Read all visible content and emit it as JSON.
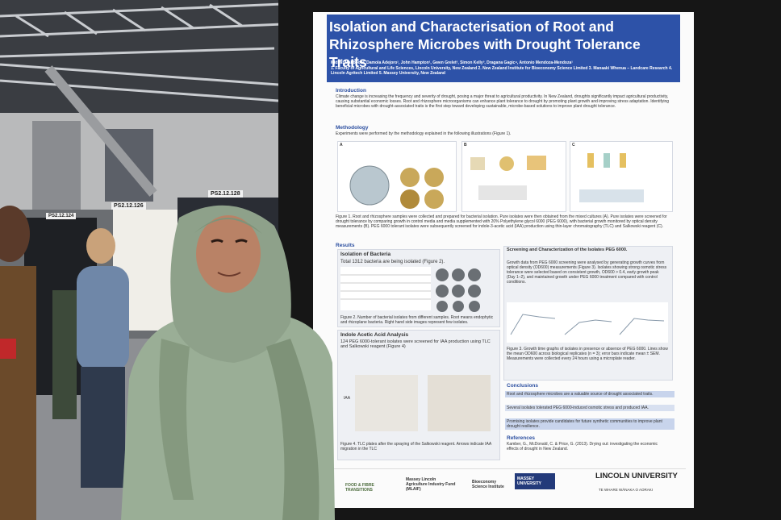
{
  "booth_signs": [
    "PS2.12.128",
    "PS2.12.126",
    "PS2.12.124"
  ],
  "poster": {
    "title": "Isolation and Characterisation of Root and Rhizosphere Microbes with Drought Tolerance Traits",
    "authors": "Midhat Mahboob¹, Damola Adejoro¹, John Hampton¹, Gwen Grelet², Simon Kelly³, Dragana Gagic⁴, Antonio Mendoza-Mendoza¹",
    "affiliations": "1. Faculty of Agricultural and Life Sciences, Lincoln University, New Zealand 2. New Zealand Institute for Bioeconomy Science Limited 3. Manaaki Whenua – Landcare Research 4. Lincoln Agritech Limited 5. Massey University, New Zealand",
    "introduction": {
      "heading": "Introduction",
      "text": "Climate change is increasing the frequency and severity of drought, posing a major threat to agricultural productivity. In New Zealand, droughts significantly impact agricultural productivity, causing substantial economic losses. Root and rhizosphere microorganisms can enhance plant tolerance to drought by promoting plant growth and improving stress adaptation. Identifying beneficial microbes with drought-associated traits is the first step toward developing sustainable, microbe-based solutions to improve plant drought tolerance."
    },
    "methodology": {
      "heading": "Methodology",
      "text": "Experiments were performed by the methodology explained in the following illustrations (Figure 1).",
      "panels": [
        "A",
        "B",
        "C"
      ],
      "caption": "Figure 1. Root and rhizosphere samples were collected and prepared for bacterial isolation. Pure isolates were then obtained from the mixed cultures (A). Pure isolates were screened for drought tolerance by comparing growth in control media and media supplemented with 20% Polyethylene glycol 6000 (PEG 6000), with bacterial growth monitored by optical density measurements (B). PEG 6000 tolerant isolates were subsequently screened for indole-3-acetic acid (IAA) production using thin-layer chromatography (TLC) and Salkowski reagent (C)."
    },
    "results": {
      "heading": "Results",
      "isolation": {
        "heading": "Isolation of Bacteria",
        "text": "Total 1312 bacteria are being isolated (Figure 2).",
        "caption": "Figure 2. Number of bacterial isolates from different samples. Root means endophytic and rhizoplane bacteria. Right hand side images represent few isolates."
      },
      "iaa": {
        "heading": "Indole Acetic Acid Analysis",
        "text": "124 PEG 6000-tolerant isolates were screened for IAA production using TLC and Salkowski reagent (Figure 4)",
        "marker": "IAA",
        "caption": "Figure 4. TLC plates after the spraying of the Salkowski reagent. Arrows indicate IAA migration in the TLC"
      },
      "screening": {
        "heading": "Screening and Characterization of the Isolates PEG 6000.",
        "text": "Growth data from PEG 6000 screening were analysed by generating growth curves from optical density (OD600) measurements (Figure 3). Isolates showing strong osmotic stress tolerance were selected based on consistent growth, OD600 > 0.4, early growth peak (Day 1–2), and maintained growth under PEG 6000 treatment compared with control conditions.",
        "caption": "Figure 3. Growth time graphs of isolates in presence or absence of PEG 6000. Lines show the mean OD600 across biological replicates (n = 3); error bars indicate mean ± SEM. Measurements were collected every 24 hours using a microplate reader."
      }
    },
    "conclusions": {
      "heading": "Conclusions",
      "items": [
        "Root and rhizosphere microbes are a valuable source of drought associated traits.",
        "Several isolates tolerated PEG 6000-induced osmotic stress and produced IAA.",
        "Promising isolates provide candidates for future synthetic communities to improve plant drought resilience."
      ]
    },
    "references": {
      "heading": "References",
      "text": "Kamber, G., McDonald, C. & Price, G. (2013). Drying out: investigating the economic effects of drought in New Zealand."
    },
    "sponsors": [
      "FOOD & FIBRE TRANSITIONS",
      "Massey Lincoln Agriculture Industry Fund (MLAIF)",
      "Bioeconomy Science Institute",
      "MASSEY UNIVERSITY",
      "LINCOLN UNIVERSITY",
      "TE WHARE WĀNAKA O AORAKI"
    ]
  }
}
